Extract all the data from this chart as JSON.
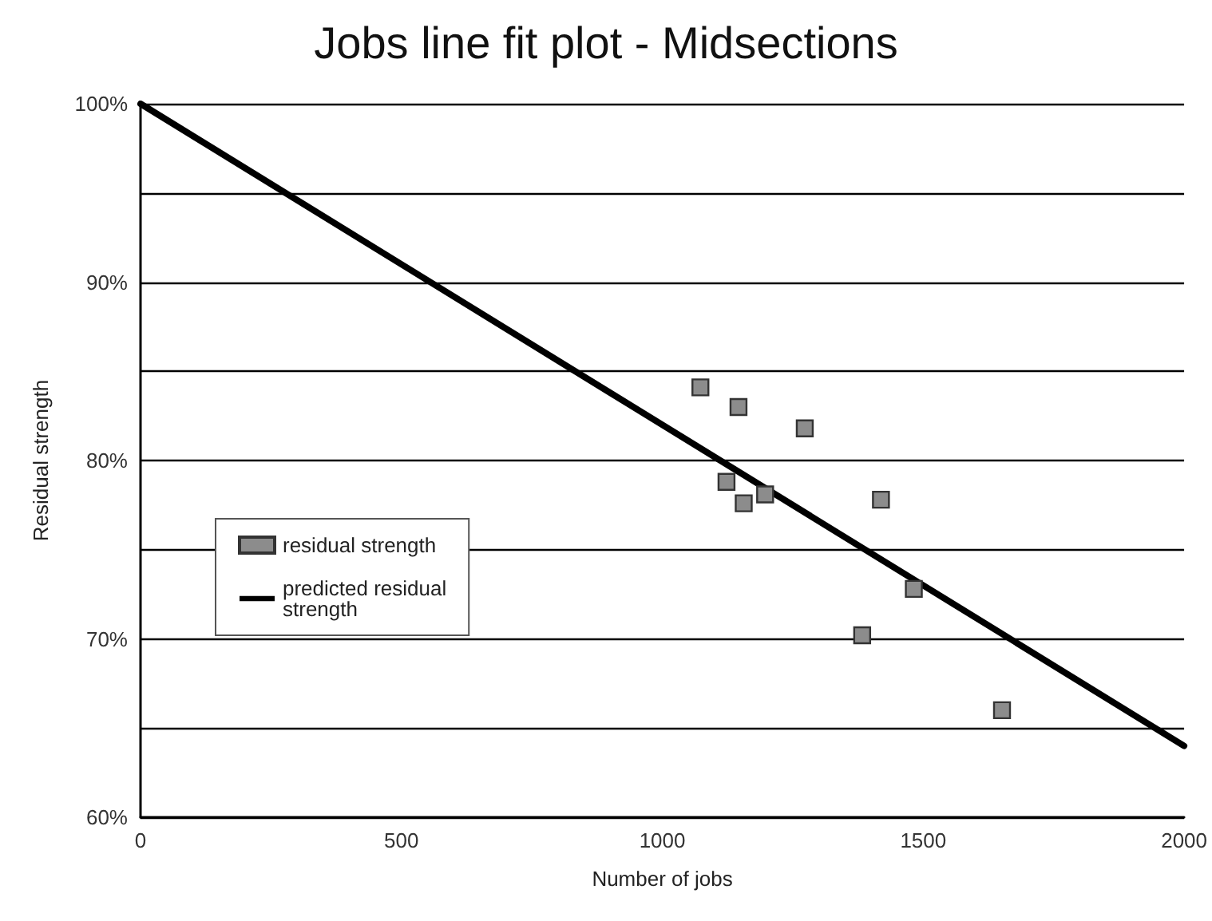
{
  "chart_data": {
    "type": "scatter",
    "title": "Jobs line fit plot - Midsections",
    "xlabel": "Number of jobs",
    "ylabel": "Residual strength",
    "xlim": [
      0,
      2000
    ],
    "xticks": [
      0,
      500,
      1000,
      1500,
      2000
    ],
    "ylim": [
      60,
      100
    ],
    "yticks": [
      {
        "value": 60,
        "label": "60%"
      },
      {
        "value": 65,
        "label": null
      },
      {
        "value": 70,
        "label": "70%"
      },
      {
        "value": 75,
        "label": null
      },
      {
        "value": 80,
        "label": "80%"
      },
      {
        "value": 85,
        "label": null
      },
      {
        "value": 90,
        "label": "90%"
      },
      {
        "value": 95,
        "label": null
      },
      {
        "value": 100,
        "label": "100%"
      }
    ],
    "grid": "y",
    "legend": "left",
    "marker": "square",
    "series": [
      {
        "name": "residual strength",
        "color": "#8c8c8c",
        "x": [
          1073,
          1146,
          1273,
          1123,
          1156,
          1197,
          1419,
          1482,
          1383,
          1651
        ],
        "values": [
          84.1,
          83.0,
          81.8,
          78.8,
          77.6,
          78.1,
          77.8,
          72.8,
          70.2,
          66.0
        ]
      },
      {
        "name": "predicted residual\nstrength",
        "type": "line",
        "color": "#000000",
        "line_style": "solid",
        "marker": "none",
        "x": [
          0,
          2000
        ],
        "values": [
          100,
          64
        ]
      }
    ]
  }
}
